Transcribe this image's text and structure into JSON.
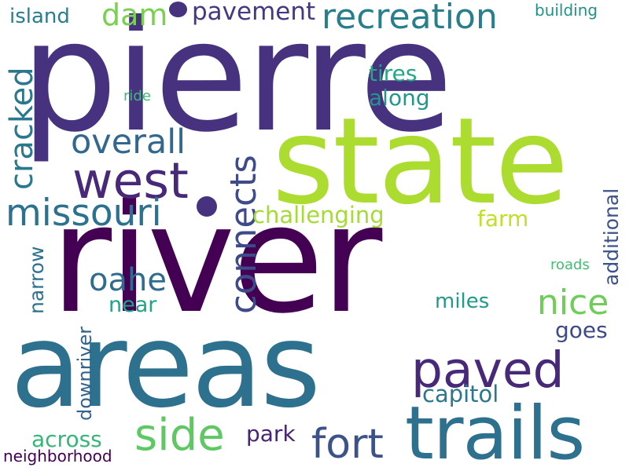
{
  "words": [
    {
      "id": "pierre",
      "text": "pierre",
      "color": "#46327e"
    },
    {
      "id": "river",
      "text": "river",
      "color": "#440154"
    },
    {
      "id": "areas",
      "text": "areas",
      "color": "#2d718e"
    },
    {
      "id": "state",
      "text": "state",
      "color": "#addc30"
    },
    {
      "id": "trails",
      "text": "trails",
      "color": "#2d718e"
    },
    {
      "id": "paved",
      "text": "paved",
      "color": "#482878"
    },
    {
      "id": "west",
      "text": "west",
      "color": "#482878"
    },
    {
      "id": "missouri",
      "text": "missouri",
      "color": "#2c728e"
    },
    {
      "id": "recreation",
      "text": "recreation",
      "color": "#277f8e"
    },
    {
      "id": "side",
      "text": "side",
      "color": "#5ec962"
    },
    {
      "id": "fort",
      "text": "fort",
      "color": "#3b528b"
    },
    {
      "id": "connects",
      "text": "connects",
      "color": "#3e4a89"
    },
    {
      "id": "overall",
      "text": "overall",
      "color": "#31688e"
    },
    {
      "id": "nice",
      "text": "nice",
      "color": "#6ece58"
    },
    {
      "id": "oahe",
      "text": "oahe",
      "color": "#2f6c8e"
    },
    {
      "id": "cracked",
      "text": "cracked",
      "color": "#2a788e"
    },
    {
      "id": "dam",
      "text": "dam",
      "color": "#7ad151"
    },
    {
      "id": "pavement",
      "text": "pavement",
      "color": "#443983"
    },
    {
      "id": "challenging",
      "text": "challenging",
      "color": "#a5db36"
    },
    {
      "id": "capitol",
      "text": "capitol",
      "color": "#2a788e"
    },
    {
      "id": "park",
      "text": "park",
      "color": "#482475"
    },
    {
      "id": "tires",
      "text": "tires",
      "color": "#22a884"
    },
    {
      "id": "along",
      "text": "along",
      "color": "#1f988b"
    },
    {
      "id": "near",
      "text": "near",
      "color": "#20a486"
    },
    {
      "id": "miles",
      "text": "miles",
      "color": "#1e9b8a"
    },
    {
      "id": "goes",
      "text": "goes",
      "color": "#3e4989"
    },
    {
      "id": "farm",
      "text": "farm",
      "color": "#c2df23"
    },
    {
      "id": "across",
      "text": "across",
      "color": "#35b779"
    },
    {
      "id": "island",
      "text": "island",
      "color": "#287d8e"
    },
    {
      "id": "building",
      "text": "building",
      "color": "#21918c"
    },
    {
      "id": "narrow",
      "text": "narrow",
      "color": "#2c728e"
    },
    {
      "id": "downriver",
      "text": "downriver",
      "color": "#33638d"
    },
    {
      "id": "additional",
      "text": "additional",
      "color": "#3b528b"
    },
    {
      "id": "roads",
      "text": "roads",
      "color": "#42be71"
    },
    {
      "id": "ride",
      "text": "ride",
      "color": "#3bbb75"
    },
    {
      "id": "neighborhood",
      "text": "neighborhood",
      "color": "#440154"
    }
  ],
  "dots": [
    {
      "id": "dot-top",
      "color": "#46327e"
    },
    {
      "id": "dot-middle",
      "color": "#46327e"
    }
  ]
}
